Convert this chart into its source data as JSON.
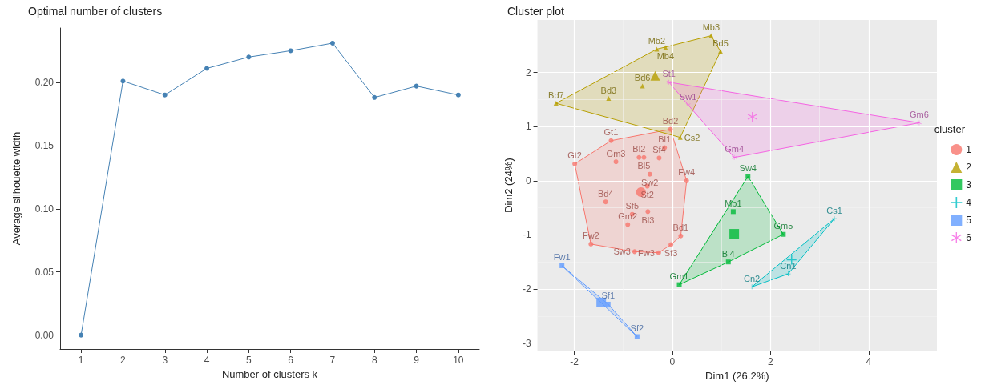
{
  "chart_data": [
    {
      "type": "line",
      "title": "Optimal number of clusters",
      "xlabel": "Number of clusters k",
      "ylabel": "Average silhouette width",
      "x": [
        1,
        2,
        3,
        4,
        5,
        6,
        7,
        8,
        9,
        10
      ],
      "values": [
        0,
        0.201,
        0.19,
        0.211,
        0.22,
        0.225,
        0.231,
        0.188,
        0.197,
        0.19
      ],
      "color": "#4682b4",
      "marker": "circle",
      "xlim": [
        0.5,
        10.5
      ],
      "xticks": [
        1,
        2,
        3,
        4,
        5,
        6,
        7,
        8,
        9,
        10
      ],
      "ylim": [
        -0.011,
        0.243
      ],
      "yticks": [
        {
          "value": 0,
          "label": "0.00"
        },
        {
          "value": 0.05,
          "label": "0.05"
        },
        {
          "value": 0.1,
          "label": "0.10"
        },
        {
          "value": 0.15,
          "label": "0.15"
        },
        {
          "value": 0.2,
          "label": "0.20"
        }
      ],
      "ref_lines": [
        {
          "axis": "x",
          "value": 7,
          "color": "#8fb3bd",
          "line_style": "dashed"
        }
      ]
    },
    {
      "type": "scatter",
      "title": "Cluster plot",
      "xlabel": "Dim1 (26.2%)",
      "ylabel": "Dim2 (24%)",
      "legend_title": "cluster",
      "legend": "right",
      "grid": true,
      "xlim": [
        -2.75,
        5.39
      ],
      "xticks": [
        -2,
        0,
        2,
        4
      ],
      "ylim": [
        -3.14,
        2.97
      ],
      "yticks": [
        -3,
        -2,
        -1,
        0,
        1,
        2
      ],
      "series": [
        {
          "name": "1",
          "color": "#f8766d",
          "marker": "circle",
          "x": [
            -0.04,
            -0.16,
            -1.25,
            -1.99,
            -1.15,
            -0.68,
            -0.58,
            -0.27,
            -0.46,
            -0.51,
            0.29,
            -1.36,
            -0.5,
            -0.82,
            -0.91,
            0.17,
            -0.03,
            -0.28,
            -0.77,
            -1.66
          ],
          "values": [
            0.95,
            0.61,
            0.74,
            0.31,
            0.35,
            0.43,
            0.43,
            0.42,
            0.12,
            -0.1,
            0,
            -0.39,
            -0.57,
            -0.62,
            -0.81,
            -1.02,
            -1.18,
            -1.33,
            -1.31,
            -1.17
          ],
          "value_labels": [
            "Bd2",
            "Bl1",
            "Gt1",
            "Gt2",
            "Gm3",
            "Bl2",
            "Bl5",
            "Sf4",
            "Sw2",
            "St2",
            "Fw4",
            "Bd4",
            "Bl3",
            "Sf5",
            "Gm2",
            "Bd1",
            "Sf3",
            "Fw3",
            "Sw3",
            "Fw2"
          ]
        },
        {
          "name": "2",
          "color": "#b79f00",
          "marker": "triangle",
          "x": [
            -2.37,
            -1.3,
            -0.61,
            -0.32,
            -0.14,
            0.79,
            0.98,
            0.16
          ],
          "values": [
            1.43,
            1.52,
            1.75,
            2.43,
            2.46,
            2.68,
            2.39,
            0.8
          ],
          "value_labels": [
            "Bd7",
            "Bd3",
            "Bd6",
            "Mb2",
            "Mb4",
            "Mb3",
            "Bd5",
            "Cs2"
          ]
        },
        {
          "name": "3",
          "color": "#00ba38",
          "marker": "square",
          "x": [
            0.14,
            1.14,
            1.24,
            1.54,
            2.26
          ],
          "values": [
            -1.92,
            -1.5,
            -0.57,
            0.08,
            -0.99
          ],
          "value_labels": [
            "Gm1",
            "Bl4",
            "Mb1",
            "Sw4",
            "Gm5"
          ]
        },
        {
          "name": "4",
          "color": "#00bfc4",
          "marker": "cross",
          "x": [
            1.62,
            2.36,
            3.3
          ],
          "values": [
            -1.96,
            -1.72,
            -0.7
          ],
          "value_labels": [
            "Cn2",
            "Cn1",
            "Cs1"
          ]
        },
        {
          "name": "5",
          "color": "#619cff",
          "marker": "square",
          "x": [
            -2.25,
            -1.31,
            -0.72
          ],
          "values": [
            -1.57,
            -2.28,
            -2.88
          ],
          "value_labels": [
            "Fw1",
            "Sf1",
            "Sf2"
          ]
        },
        {
          "name": "6",
          "color": "#f564e3",
          "marker": "star",
          "x": [
            -0.07,
            0.32,
            1.26,
            5.03
          ],
          "values": [
            1.82,
            1.4,
            0.43,
            1.07
          ],
          "value_labels": [
            "St1",
            "Sw1",
            "Gm4",
            "Gm6"
          ]
        },
        {
          "color": "#f8766d",
          "marker": "circle",
          "x": [
            -0.64
          ],
          "values": [
            -0.21
          ]
        },
        {
          "color": "#b79f00",
          "marker": "triangle",
          "x": [
            -0.35
          ],
          "values": [
            1.94
          ]
        },
        {
          "color": "#00ba38",
          "marker": "square",
          "x": [
            1.26
          ],
          "values": [
            -0.98
          ]
        },
        {
          "color": "#00bfc4",
          "marker": "cross",
          "x": [
            2.43
          ],
          "values": [
            -1.46
          ]
        },
        {
          "color": "#619cff",
          "marker": "square",
          "x": [
            -1.45
          ],
          "values": [
            -2.25
          ]
        },
        {
          "color": "#f564e3",
          "marker": "star",
          "x": [
            1.63
          ],
          "values": [
            1.18
          ]
        }
      ]
    }
  ]
}
